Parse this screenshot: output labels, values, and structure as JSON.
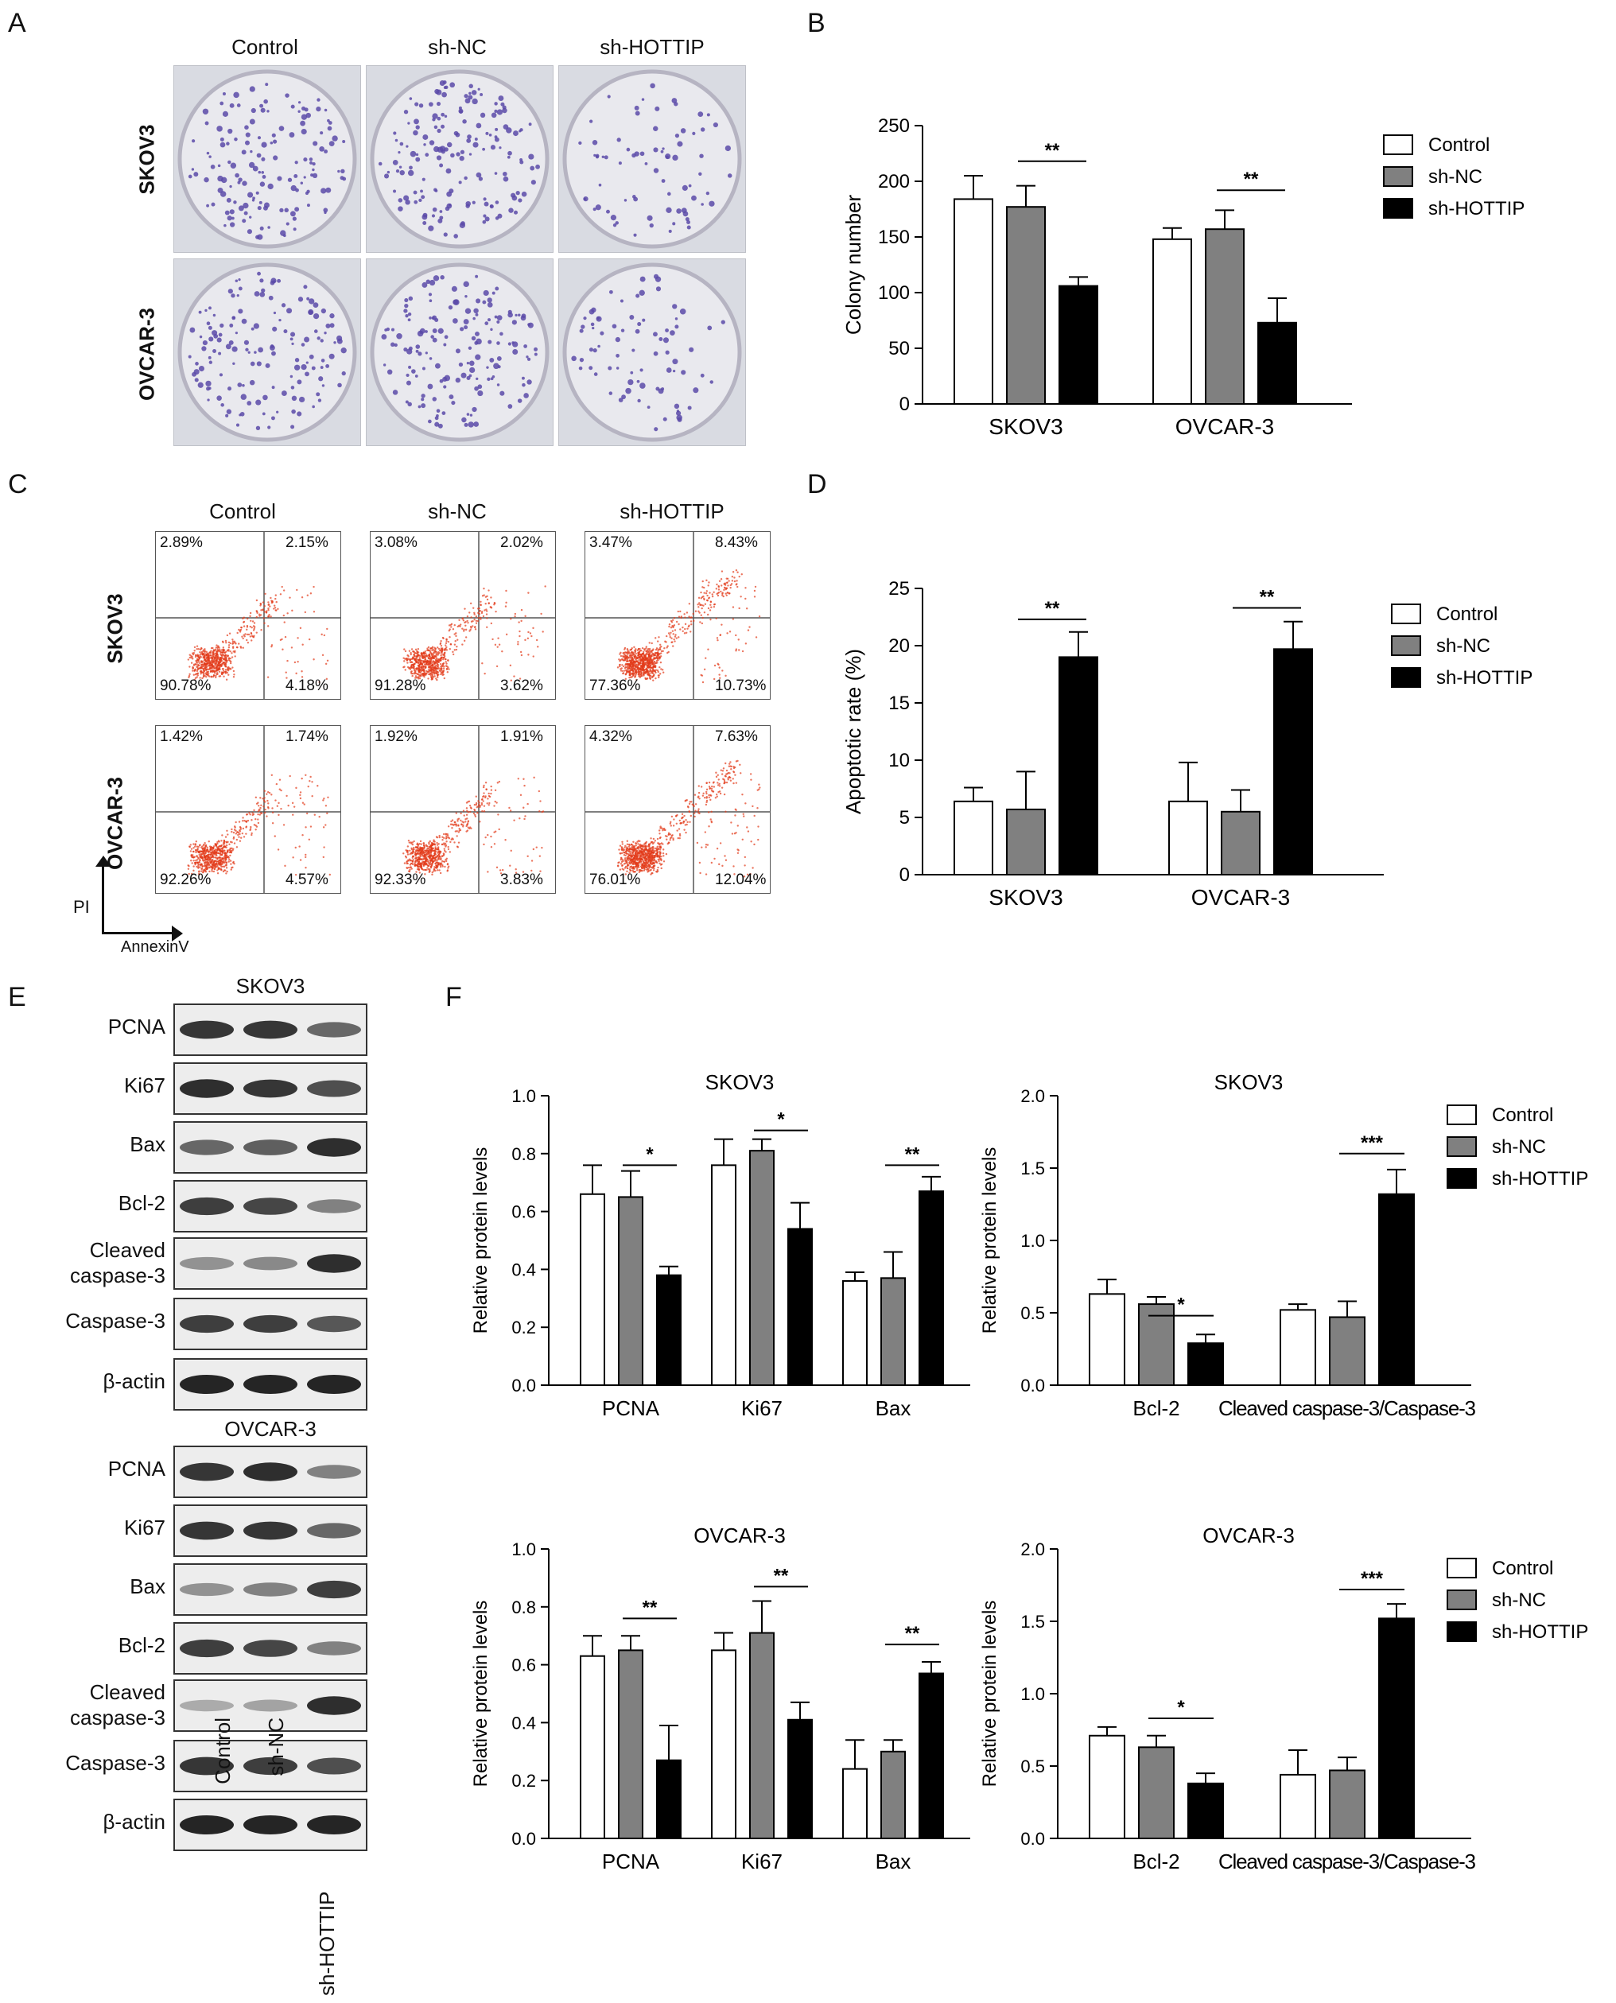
{
  "panels": {
    "a": "A",
    "b": "B",
    "c": "C",
    "d": "D",
    "e": "E",
    "f": "F"
  },
  "groups": [
    "Control",
    "sh-NC",
    "sh-HOTTIP"
  ],
  "cells": [
    "SKOV3",
    "OVCAR-3"
  ],
  "panel_c": {
    "axis_y": "PI",
    "axis_x": "AnnexinV",
    "quadrants": [
      [
        [
          "2.89%",
          "2.15%",
          "90.78%",
          "4.18%"
        ],
        [
          "3.08%",
          "2.02%",
          "91.28%",
          "3.62%"
        ],
        [
          "3.47%",
          "8.43%",
          "77.36%",
          "10.73%"
        ]
      ],
      [
        [
          "1.42%",
          "1.74%",
          "92.26%",
          "4.57%"
        ],
        [
          "1.92%",
          "1.91%",
          "92.33%",
          "3.83%"
        ],
        [
          "4.32%",
          "7.63%",
          "76.01%",
          "12.04%"
        ]
      ]
    ]
  },
  "panel_e": {
    "skov3_title": "SKOV3",
    "ovcar3_title": "OVCAR-3",
    "bands": [
      "PCNA",
      "Ki67",
      "Bax",
      "Bcl-2",
      "Cleaved caspase-3",
      "Caspase-3",
      "β-actin"
    ],
    "lanes": [
      "Control",
      "sh-NC",
      "sh-HOTTIP"
    ]
  },
  "chart_data": [
    {
      "id": "B",
      "type": "bar",
      "categories": [
        "SKOV3",
        "OVCAR-3"
      ],
      "series": [
        {
          "name": "Control",
          "values": [
            184,
            148
          ],
          "errors": [
            21,
            10
          ],
          "color": "#ffffff"
        },
        {
          "name": "sh-NC",
          "values": [
            177,
            157
          ],
          "errors": [
            19,
            17
          ],
          "color": "#808080"
        },
        {
          "name": "sh-HOTTIP",
          "values": [
            106,
            73
          ],
          "errors": [
            8,
            22
          ],
          "color": "#000000"
        }
      ],
      "ylabel": "Colony number",
      "ylim": [
        0,
        250
      ],
      "yticks": [
        0,
        50,
        100,
        150,
        200,
        250
      ],
      "significance": [
        {
          "category": 0,
          "from": 1,
          "to": 2,
          "label": "**",
          "y": 218
        },
        {
          "category": 1,
          "from": 1,
          "to": 2,
          "label": "**",
          "y": 192
        }
      ],
      "legend": "right"
    },
    {
      "id": "D",
      "type": "bar",
      "categories": [
        "SKOV3",
        "OVCAR-3"
      ],
      "series": [
        {
          "name": "Control",
          "values": [
            6.4,
            6.4
          ],
          "errors": [
            1.2,
            3.4
          ],
          "color": "#ffffff"
        },
        {
          "name": "sh-NC",
          "values": [
            5.7,
            5.5
          ],
          "errors": [
            3.3,
            1.9
          ],
          "color": "#808080"
        },
        {
          "name": "sh-HOTTIP",
          "values": [
            19.0,
            19.7
          ],
          "errors": [
            2.2,
            2.4
          ],
          "color": "#000000"
        }
      ],
      "ylabel": "Apoptotic rate (%)",
      "ylim": [
        0,
        25
      ],
      "yticks": [
        0,
        5,
        10,
        15,
        20,
        25
      ],
      "significance": [
        {
          "category": 0,
          "from": 1,
          "to": 2,
          "label": "**",
          "y": 22.3
        },
        {
          "category": 1,
          "from": 1,
          "to": 2,
          "label": "**",
          "y": 23.3
        }
      ],
      "legend": "right"
    },
    {
      "id": "F1",
      "type": "bar",
      "title": "SKOV3",
      "categories": [
        "PCNA",
        "Ki67",
        "Bax"
      ],
      "series": [
        {
          "name": "Control",
          "values": [
            0.66,
            0.76,
            0.36
          ],
          "errors": [
            0.1,
            0.09,
            0.03
          ],
          "color": "#ffffff"
        },
        {
          "name": "sh-NC",
          "values": [
            0.65,
            0.81,
            0.37
          ],
          "errors": [
            0.09,
            0.04,
            0.09
          ],
          "color": "#808080"
        },
        {
          "name": "sh-HOTTIP",
          "values": [
            0.38,
            0.54,
            0.67
          ],
          "errors": [
            0.03,
            0.09,
            0.05
          ],
          "color": "#000000"
        }
      ],
      "ylabel": "Relative protein levels",
      "ylim": [
        0,
        1.0
      ],
      "yticks": [
        "0.0",
        "0.2",
        "0.4",
        "0.6",
        "0.8",
        "1.0"
      ],
      "significance": [
        {
          "category": 0,
          "from": 1,
          "to": 2,
          "label": "*",
          "y": 0.76
        },
        {
          "category": 1,
          "from": 1,
          "to": 2,
          "label": "*",
          "y": 0.88
        },
        {
          "category": 2,
          "from": 1,
          "to": 2,
          "label": "**",
          "y": 0.76
        }
      ]
    },
    {
      "id": "F2",
      "type": "bar",
      "title": "SKOV3",
      "categories": [
        "Bcl-2",
        "Cleaved caspase-3/Caspase-3"
      ],
      "series": [
        {
          "name": "Control",
          "values": [
            0.63,
            0.52
          ],
          "errors": [
            0.1,
            0.04
          ],
          "color": "#ffffff"
        },
        {
          "name": "sh-NC",
          "values": [
            0.56,
            0.47
          ],
          "errors": [
            0.05,
            0.11
          ],
          "color": "#808080"
        },
        {
          "name": "sh-HOTTIP",
          "values": [
            0.29,
            1.32
          ],
          "errors": [
            0.06,
            0.17
          ],
          "color": "#000000"
        }
      ],
      "ylabel": "Relative protein levels",
      "ylim": [
        0,
        2.0
      ],
      "yticks": [
        "0.0",
        "0.5",
        "1.0",
        "1.5",
        "2.0"
      ],
      "significance": [
        {
          "category": 0,
          "from": 1,
          "to": 2,
          "label": "*",
          "y": 0.48
        },
        {
          "category": 1,
          "from": 1,
          "to": 2,
          "label": "***",
          "y": 1.6
        }
      ],
      "legend": "right"
    },
    {
      "id": "F3",
      "type": "bar",
      "title": "OVCAR-3",
      "categories": [
        "PCNA",
        "Ki67",
        "Bax"
      ],
      "series": [
        {
          "name": "Control",
          "values": [
            0.63,
            0.65,
            0.24
          ],
          "errors": [
            0.07,
            0.06,
            0.1
          ],
          "color": "#ffffff"
        },
        {
          "name": "sh-NC",
          "values": [
            0.65,
            0.71,
            0.3
          ],
          "errors": [
            0.05,
            0.11,
            0.04
          ],
          "color": "#808080"
        },
        {
          "name": "sh-HOTTIP",
          "values": [
            0.27,
            0.41,
            0.57
          ],
          "errors": [
            0.12,
            0.06,
            0.04
          ],
          "color": "#000000"
        }
      ],
      "ylabel": "Relative protein levels",
      "ylim": [
        0,
        1.0
      ],
      "yticks": [
        "0.0",
        "0.2",
        "0.4",
        "0.6",
        "0.8",
        "1.0"
      ],
      "significance": [
        {
          "category": 0,
          "from": 1,
          "to": 2,
          "label": "**",
          "y": 0.76
        },
        {
          "category": 1,
          "from": 1,
          "to": 2,
          "label": "**",
          "y": 0.87
        },
        {
          "category": 2,
          "from": 1,
          "to": 2,
          "label": "**",
          "y": 0.67
        }
      ]
    },
    {
      "id": "F4",
      "type": "bar",
      "title": "OVCAR-3",
      "categories": [
        "Bcl-2",
        "Cleaved caspase-3/Caspase-3"
      ],
      "series": [
        {
          "name": "Control",
          "values": [
            0.71,
            0.44
          ],
          "errors": [
            0.06,
            0.17
          ],
          "color": "#ffffff"
        },
        {
          "name": "sh-NC",
          "values": [
            0.63,
            0.47
          ],
          "errors": [
            0.08,
            0.09
          ],
          "color": "#808080"
        },
        {
          "name": "sh-HOTTIP",
          "values": [
            0.38,
            1.52
          ],
          "errors": [
            0.07,
            0.1
          ],
          "color": "#000000"
        }
      ],
      "ylabel": "Relative protein levels",
      "ylim": [
        0,
        2.0
      ],
      "yticks": [
        "0.0",
        "0.5",
        "1.0",
        "1.5",
        "2.0"
      ],
      "significance": [
        {
          "category": 0,
          "from": 1,
          "to": 2,
          "label": "*",
          "y": 0.83
        },
        {
          "category": 1,
          "from": 1,
          "to": 2,
          "label": "***",
          "y": 1.72
        }
      ],
      "legend": "right"
    }
  ]
}
